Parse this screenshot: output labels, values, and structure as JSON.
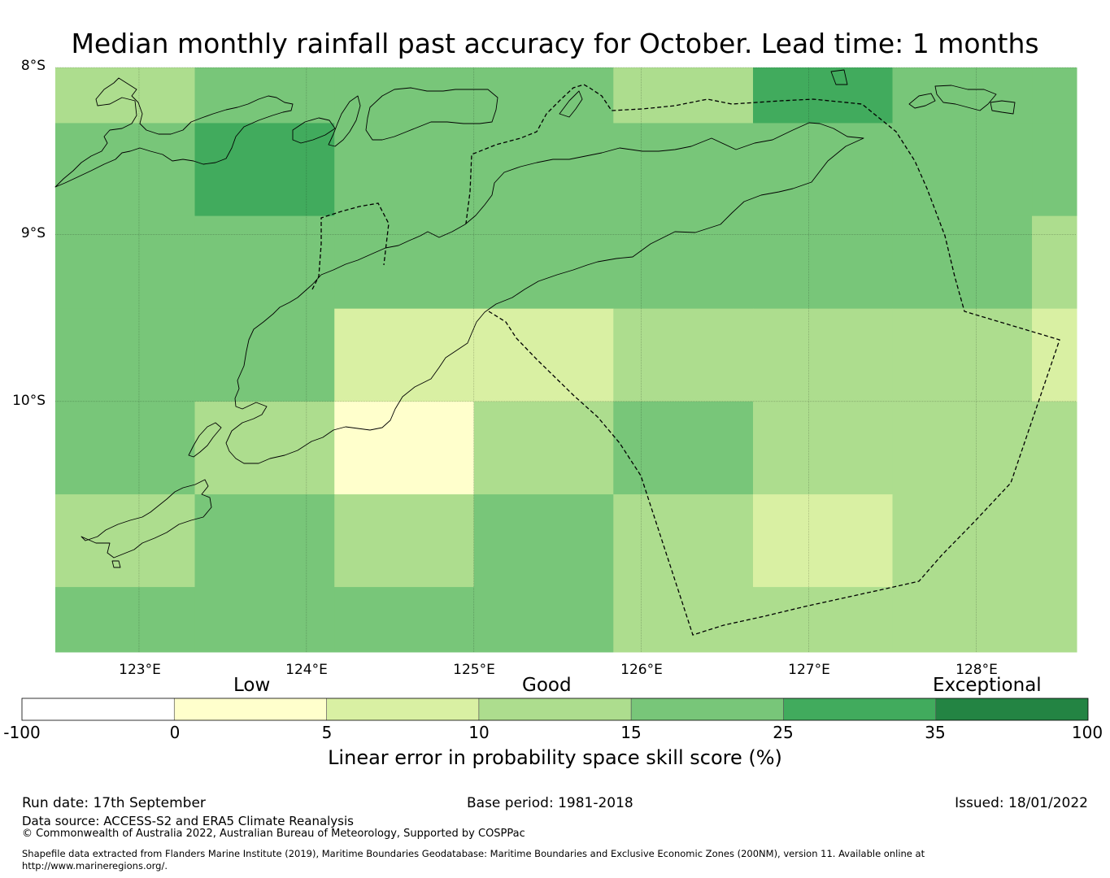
{
  "title": "Median monthly rainfall past accuracy for October. Lead time: 1 months",
  "map": {
    "lat_labels": [
      "8°S",
      "9°S",
      "10°S"
    ],
    "lon_labels": [
      "123°E",
      "124°E",
      "125°E",
      "126°E",
      "127°E",
      "128°E"
    ],
    "extent": {
      "lon_min": 122.5,
      "lon_max": 128.6,
      "lat_min": -11.5,
      "lat_max": -8.0
    },
    "grid_lons": [
      122.5,
      123.333,
      124.167,
      125.0,
      125.833,
      126.667,
      127.5,
      128.333,
      128.6
    ],
    "grid_lats": [
      -8.0,
      -8.333,
      -8.889,
      -9.444,
      -10.0,
      -10.556,
      -11.111,
      -11.5
    ],
    "cell_values": [
      [
        3,
        4,
        4,
        4,
        3,
        5,
        4,
        4
      ],
      [
        4,
        5,
        4,
        4,
        4,
        4,
        4,
        4
      ],
      [
        4,
        4,
        4,
        4,
        4,
        4,
        4,
        3
      ],
      [
        4,
        4,
        2,
        2,
        3,
        3,
        3,
        2
      ],
      [
        4,
        3,
        1,
        3,
        4,
        3,
        3,
        3
      ],
      [
        3,
        4,
        3,
        4,
        3,
        2,
        3,
        3
      ],
      [
        4,
        4,
        4,
        4,
        3,
        3,
        3,
        3
      ]
    ]
  },
  "legend": {
    "category_labels": [
      "Low",
      "Good",
      "Exceptional"
    ],
    "ticks": [
      "-100",
      "0",
      "5",
      "10",
      "15",
      "25",
      "35",
      "100"
    ],
    "colors": [
      "#ffffff",
      "#ffffcc",
      "#d9f0a3",
      "#addd8e",
      "#78c679",
      "#41ab5d",
      "#238443"
    ],
    "title": "Linear error in probability space skill score (%)"
  },
  "footer": {
    "run_date": "Run date: 17th September",
    "base_period": "Base period: 1981-2018",
    "issued": "Issued: 18/01/2022",
    "data_source": "Data source: ACCESS-S2 and ERA5 Climate Reanalysis",
    "copyright": "© Commonwealth of Australia 2022, Australian Bureau of Meteorology, Supported by COSPPac",
    "shapefile_line1": "Shapefile data extracted from Flanders Marine Institute (2019), Maritime Boundaries Geodatabase: Maritime Boundaries and Exclusive Economic Zones (200NM), version 11. Available online at",
    "shapefile_line2": "http://www.marineregions.org/."
  }
}
